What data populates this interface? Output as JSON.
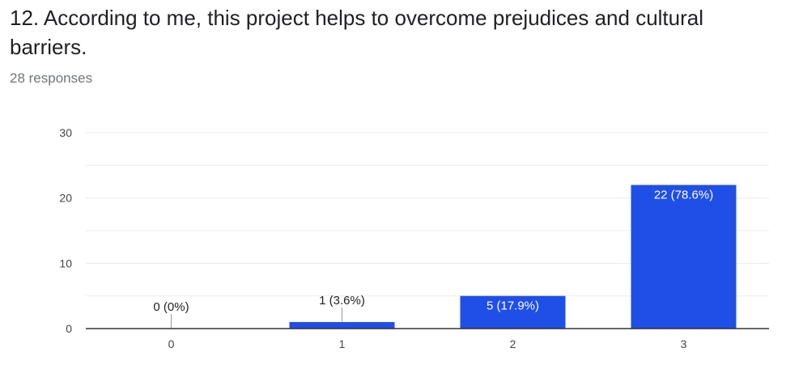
{
  "question": {
    "title": "12. According to me, this project helps to overcome prejudices and cultural barriers.",
    "responses": "28 responses"
  },
  "chart_data": {
    "type": "bar",
    "categories": [
      "0",
      "1",
      "2",
      "3"
    ],
    "values": [
      0,
      1,
      5,
      22
    ],
    "data_labels": [
      "0 (0%)",
      "1 (3.6%)",
      "5 (17.9%)",
      "22 (78.6%)"
    ],
    "ylim": [
      0,
      30
    ],
    "yticks": [
      0,
      10,
      20,
      30
    ],
    "grid": true,
    "legend": "none",
    "bar_color": "#1f4fe6",
    "title": "",
    "xlabel": "",
    "ylabel": ""
  }
}
